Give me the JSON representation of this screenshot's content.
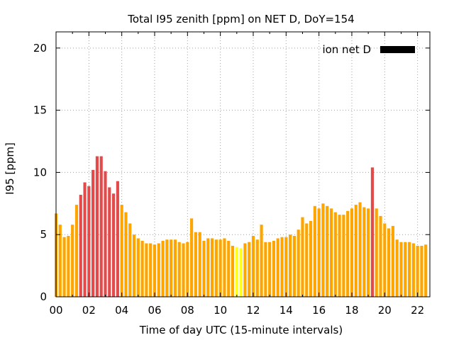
{
  "chart_data": {
    "type": "bar",
    "title": "Total I95 zenith [ppm] on NET D, DoY=154",
    "xlabel": "Time of day UTC (15-minute intervals)",
    "ylabel": "I95 [ppm]",
    "xlim": [
      0,
      22.75
    ],
    "ylim": [
      0,
      21.3
    ],
    "x_ticks": [
      {
        "value": 0,
        "label": "00"
      },
      {
        "value": 2,
        "label": "02"
      },
      {
        "value": 4,
        "label": "04"
      },
      {
        "value": 6,
        "label": "06"
      },
      {
        "value": 8,
        "label": "08"
      },
      {
        "value": 10,
        "label": "10"
      },
      {
        "value": 12,
        "label": "12"
      },
      {
        "value": 14,
        "label": "14"
      },
      {
        "value": 16,
        "label": "16"
      },
      {
        "value": 18,
        "label": "18"
      },
      {
        "value": 20,
        "label": "20"
      },
      {
        "value": 22,
        "label": "22"
      }
    ],
    "y_ticks": [
      {
        "value": 0,
        "label": "0"
      },
      {
        "value": 5,
        "label": "5"
      },
      {
        "value": 10,
        "label": "10"
      },
      {
        "value": 15,
        "label": "15"
      },
      {
        "value": 20,
        "label": "20"
      }
    ],
    "grid": true,
    "legend": {
      "label": "ion net D",
      "position": "top-right",
      "color": "#000000"
    },
    "colors": {
      "orange": "#ffa500",
      "red": "#e34a4a",
      "yellow": "#ffff20"
    },
    "bar_interval_hours": 0.25,
    "values": [
      6.7,
      5.8,
      4.8,
      4.9,
      5.8,
      7.4,
      8.2,
      9.2,
      8.9,
      10.2,
      11.3,
      11.3,
      10.1,
      8.8,
      8.3,
      9.3,
      7.4,
      6.8,
      5.9,
      5.0,
      4.7,
      4.5,
      4.3,
      4.3,
      4.2,
      4.3,
      4.5,
      4.6,
      4.6,
      4.6,
      4.4,
      4.3,
      4.4,
      6.3,
      5.2,
      5.2,
      4.5,
      4.7,
      4.7,
      4.6,
      4.6,
      4.7,
      4.5,
      4.1,
      4.0,
      3.9,
      4.3,
      4.4,
      4.9,
      4.6,
      5.8,
      4.4,
      4.4,
      4.5,
      4.7,
      4.8,
      4.8,
      5.0,
      4.9,
      5.4,
      6.4,
      5.9,
      6.1,
      7.3,
      7.1,
      7.5,
      7.3,
      7.1,
      6.8,
      6.6,
      6.6,
      6.9,
      7.1,
      7.4,
      7.6,
      7.2,
      7.1,
      10.4,
      7.1,
      6.5,
      5.9,
      5.5,
      5.7,
      4.6,
      4.4,
      4.4,
      4.4,
      4.3,
      4.1,
      4.1,
      4.2
    ],
    "bar_colors": [
      "orange",
      "orange",
      "orange",
      "orange",
      "orange",
      "orange",
      "red",
      "red",
      "red",
      "red",
      "red",
      "red",
      "red",
      "red",
      "red",
      "red",
      "orange",
      "orange",
      "orange",
      "orange",
      "orange",
      "orange",
      "orange",
      "orange",
      "orange",
      "orange",
      "orange",
      "orange",
      "orange",
      "orange",
      "orange",
      "orange",
      "orange",
      "orange",
      "orange",
      "orange",
      "orange",
      "orange",
      "orange",
      "orange",
      "orange",
      "orange",
      "orange",
      "orange",
      "yellow",
      "yellow",
      "orange",
      "orange",
      "orange",
      "orange",
      "orange",
      "orange",
      "orange",
      "orange",
      "orange",
      "orange",
      "orange",
      "orange",
      "orange",
      "orange",
      "orange",
      "orange",
      "orange",
      "orange",
      "orange",
      "orange",
      "orange",
      "orange",
      "orange",
      "orange",
      "orange",
      "orange",
      "orange",
      "orange",
      "orange",
      "orange",
      "orange",
      "red",
      "orange",
      "orange",
      "orange",
      "orange",
      "orange",
      "orange",
      "orange",
      "orange",
      "orange",
      "orange",
      "orange",
      "orange",
      "orange"
    ]
  }
}
